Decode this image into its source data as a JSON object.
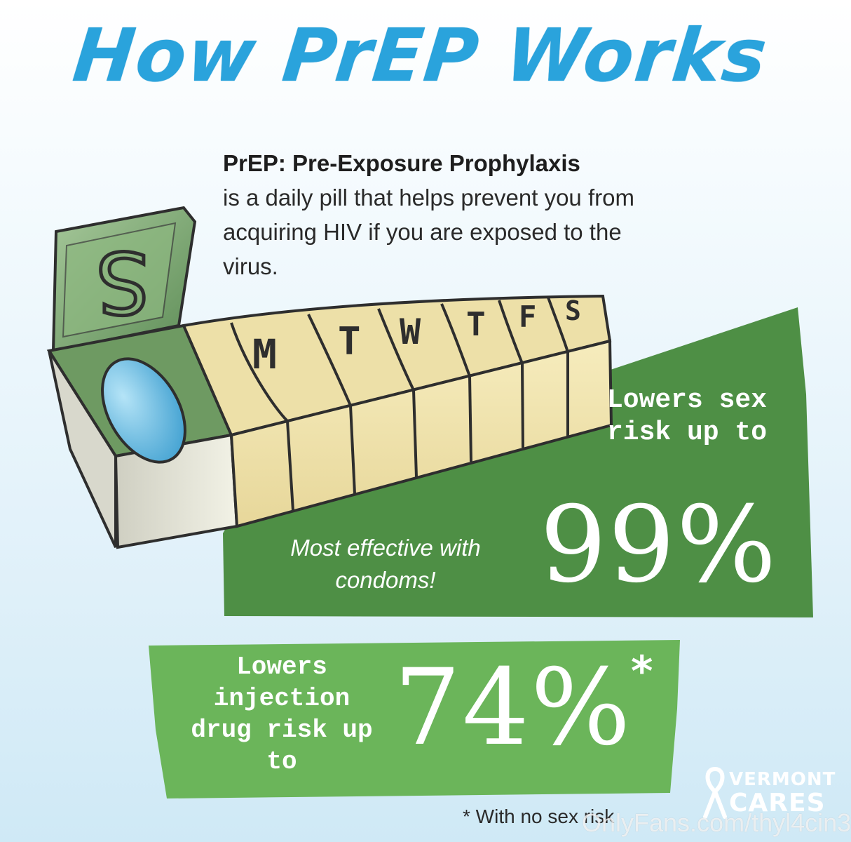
{
  "title": "How PrEP Works",
  "description": {
    "heading": "PrEP: Pre-Exposure Prophylaxis",
    "body": "is a daily pill that helps prevent you from acquiring HIV if you are exposed to the virus."
  },
  "pillbox": {
    "open_lid_label": "S",
    "day_labels": [
      "M",
      "T",
      "W",
      "T",
      "F",
      "S"
    ]
  },
  "stat_sex": {
    "label": "Lowers sex risk up to",
    "value": "99%",
    "note": "Most effective with condoms!"
  },
  "stat_injection": {
    "label": "Lowers injection drug risk up to",
    "value": "74%",
    "asterisk": "*"
  },
  "footnote": "* With no sex risk",
  "logo": {
    "line1": "VERMONT",
    "line2": "CARES"
  },
  "watermark": "OnlyFans.com/thyl4cin3",
  "colors": {
    "title_blue": "#2aa3dc",
    "dark_green": "#4e8f45",
    "light_green": "#6bb55a",
    "pill_blue": "#5db7e0",
    "box_yellow": "#efe2a6"
  }
}
